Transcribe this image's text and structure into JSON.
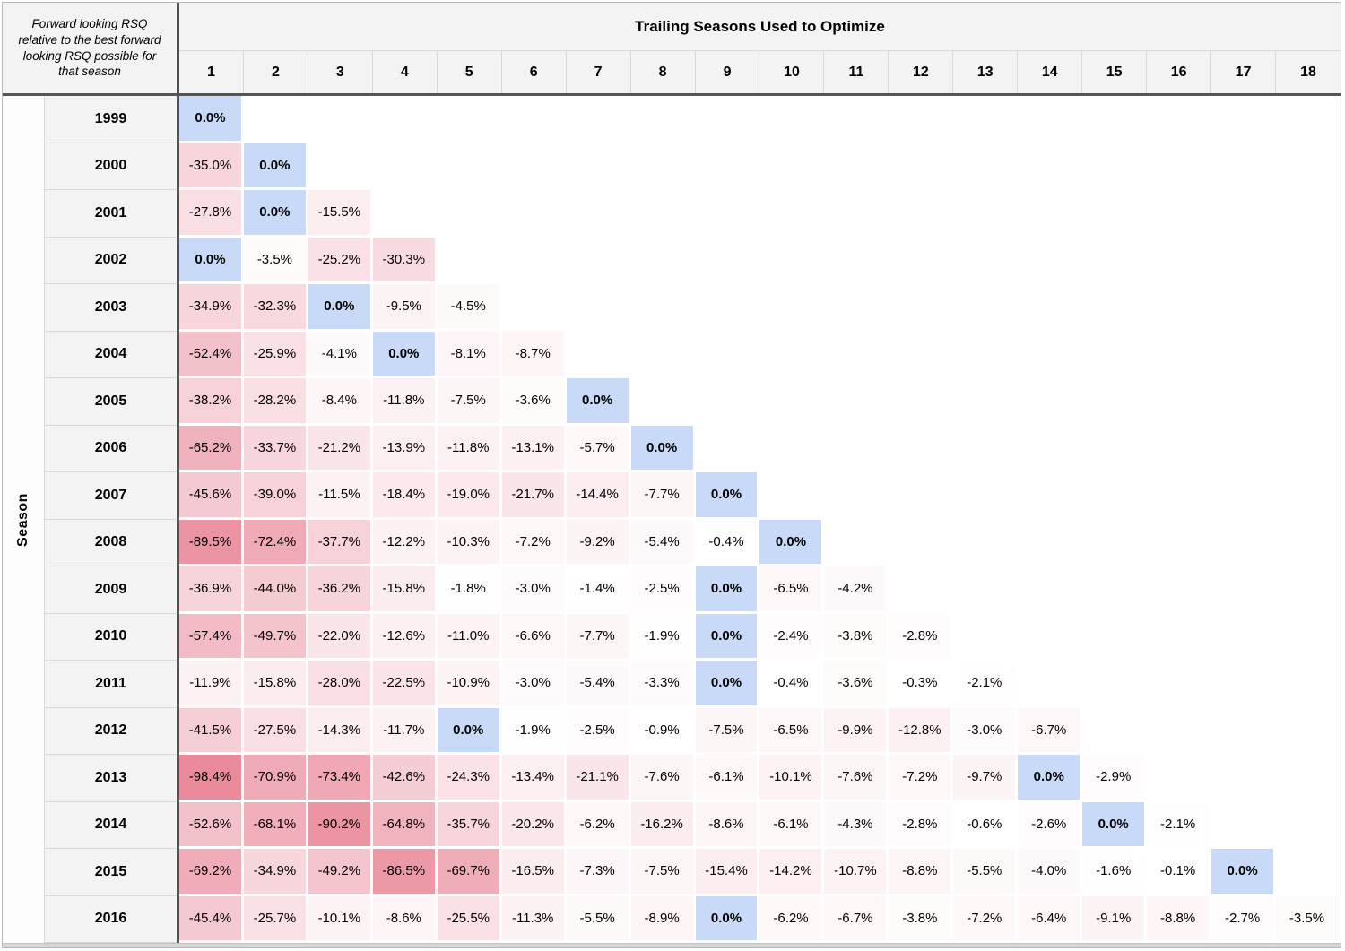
{
  "meta": {
    "corner_label": "Forward looking RSQ relative to the best forward looking RSQ possible for that season",
    "col_group_title": "Trailing Seasons Used to Optimize",
    "row_group_title": "Season"
  },
  "colors": {
    "header_bg": "#f3f3f3",
    "zero_highlight": "#c9daf8",
    "negative_extreme": "#e98b9b",
    "cell_gap": "#ffffff",
    "thick_border": "#555555",
    "thin_border": "#d9d9d9",
    "outer_border": "#b9b9b9",
    "text": "#000000"
  },
  "chart_data": {
    "type": "heatmap",
    "title": "Forward looking RSQ relative to the best forward looking RSQ possible for that season",
    "xlabel": "Trailing Seasons Used to Optimize",
    "ylabel": "Season",
    "value_format": "percent_one_decimal",
    "columns": [
      1,
      2,
      3,
      4,
      5,
      6,
      7,
      8,
      9,
      10,
      11,
      12,
      13,
      14,
      15,
      16,
      17,
      18
    ],
    "scale": {
      "domain_min": -98.4,
      "domain_max": 0,
      "min_color": "#e98b9b",
      "max_color": "#ffffff",
      "zero_color": "#c9daf8"
    },
    "rows": [
      {
        "year": "1999",
        "values": [
          0.0
        ]
      },
      {
        "year": "2000",
        "values": [
          -35.0,
          0.0
        ]
      },
      {
        "year": "2001",
        "values": [
          -27.8,
          0.0,
          -15.5
        ]
      },
      {
        "year": "2002",
        "values": [
          0.0,
          -3.5,
          -25.2,
          -30.3
        ]
      },
      {
        "year": "2003",
        "values": [
          -34.9,
          -32.3,
          0.0,
          -9.5,
          -4.5
        ]
      },
      {
        "year": "2004",
        "values": [
          -52.4,
          -25.9,
          -4.1,
          0.0,
          -8.1,
          -8.7
        ]
      },
      {
        "year": "2005",
        "values": [
          -38.2,
          -28.2,
          -8.4,
          -11.8,
          -7.5,
          -3.6,
          0.0
        ]
      },
      {
        "year": "2006",
        "values": [
          -65.2,
          -33.7,
          -21.2,
          -13.9,
          -11.8,
          -13.1,
          -5.7,
          0.0
        ]
      },
      {
        "year": "2007",
        "values": [
          -45.6,
          -39.0,
          -11.5,
          -18.4,
          -19.0,
          -21.7,
          -14.4,
          -7.7,
          0.0
        ]
      },
      {
        "year": "2008",
        "values": [
          -89.5,
          -72.4,
          -37.7,
          -12.2,
          -10.3,
          -7.2,
          -9.2,
          -5.4,
          -0.4,
          0.0
        ]
      },
      {
        "year": "2009",
        "values": [
          -36.9,
          -44.0,
          -36.2,
          -15.8,
          -1.8,
          -3.0,
          -1.4,
          -2.5,
          0.0,
          -6.5,
          -4.2
        ]
      },
      {
        "year": "2010",
        "values": [
          -57.4,
          -49.7,
          -22.0,
          -12.6,
          -11.0,
          -6.6,
          -7.7,
          -1.9,
          0.0,
          -2.4,
          -3.8,
          -2.8
        ]
      },
      {
        "year": "2011",
        "values": [
          -11.9,
          -15.8,
          -28.0,
          -22.5,
          -10.9,
          -3.0,
          -5.4,
          -3.3,
          0.0,
          -0.4,
          -3.6,
          -0.3,
          -2.1
        ]
      },
      {
        "year": "2012",
        "values": [
          -41.5,
          -27.5,
          -14.3,
          -11.7,
          0.0,
          -1.9,
          -2.5,
          -0.9,
          -7.5,
          -6.5,
          -9.9,
          -12.8,
          -3.0,
          -6.7
        ]
      },
      {
        "year": "2013",
        "values": [
          -98.4,
          -70.9,
          -73.4,
          -42.6,
          -24.3,
          -13.4,
          -21.1,
          -7.6,
          -6.1,
          -10.1,
          -7.6,
          -7.2,
          -9.7,
          0.0,
          -2.9
        ]
      },
      {
        "year": "2014",
        "values": [
          -52.6,
          -68.1,
          -90.2,
          -64.8,
          -35.7,
          -20.2,
          -6.2,
          -16.2,
          -8.6,
          -6.1,
          -4.3,
          -2.8,
          -0.6,
          -2.6,
          0.0,
          -2.1
        ]
      },
      {
        "year": "2015",
        "values": [
          -69.2,
          -34.9,
          -49.2,
          -86.5,
          -69.7,
          -16.5,
          -7.3,
          -7.5,
          -15.4,
          -14.2,
          -10.7,
          -8.8,
          -5.5,
          -4.0,
          -1.6,
          -0.1,
          0.0
        ]
      },
      {
        "year": "2016",
        "values": [
          -45.4,
          -25.7,
          -10.1,
          -8.6,
          -25.5,
          -11.3,
          -5.5,
          -8.9,
          0.0,
          -6.2,
          -6.7,
          -3.8,
          -7.2,
          -6.4,
          -9.1,
          -8.8,
          -2.7,
          -3.5
        ]
      }
    ]
  }
}
